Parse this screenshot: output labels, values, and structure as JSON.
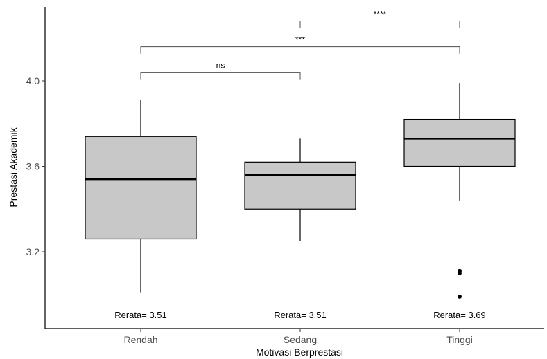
{
  "chart_data": {
    "type": "boxplot",
    "xlabel": "Motivasi Berprestasi",
    "ylabel": "Prestasi Akademik",
    "ylim": [
      2.95,
      4.35
    ],
    "yticks": [
      3.2,
      3.6,
      4.0
    ],
    "ytick_labels": [
      "3.2",
      "3.6",
      "4.0"
    ],
    "grid": false,
    "box_color": "#c8c8c8",
    "categories": [
      "Rendah",
      "Sedang",
      "Tinggi"
    ],
    "boxes": [
      {
        "category": "Rendah",
        "whisker_low": 3.01,
        "q1": 3.26,
        "median": 3.54,
        "q3": 3.74,
        "whisker_high": 3.91,
        "outliers": [],
        "mean_label": "Rerata= 3.51"
      },
      {
        "category": "Sedang",
        "whisker_low": 3.25,
        "q1": 3.4,
        "median": 3.56,
        "q3": 3.62,
        "whisker_high": 3.73,
        "outliers": [],
        "mean_label": "Rerata= 3.51"
      },
      {
        "category": "Tinggi",
        "whisker_low": 3.44,
        "q1": 3.6,
        "median": 3.73,
        "q3": 3.82,
        "whisker_high": 3.99,
        "outliers": [
          3.11,
          3.1,
          2.99
        ],
        "mean_label": "Rerata= 3.69"
      }
    ],
    "comparisons": [
      {
        "from": "Rendah",
        "to": "Sedang",
        "y": 4.04,
        "label": "ns"
      },
      {
        "from": "Rendah",
        "to": "Tinggi",
        "y": 4.16,
        "label": "***"
      },
      {
        "from": "Sedang",
        "to": "Tinggi",
        "y": 4.28,
        "label": "****"
      }
    ]
  }
}
